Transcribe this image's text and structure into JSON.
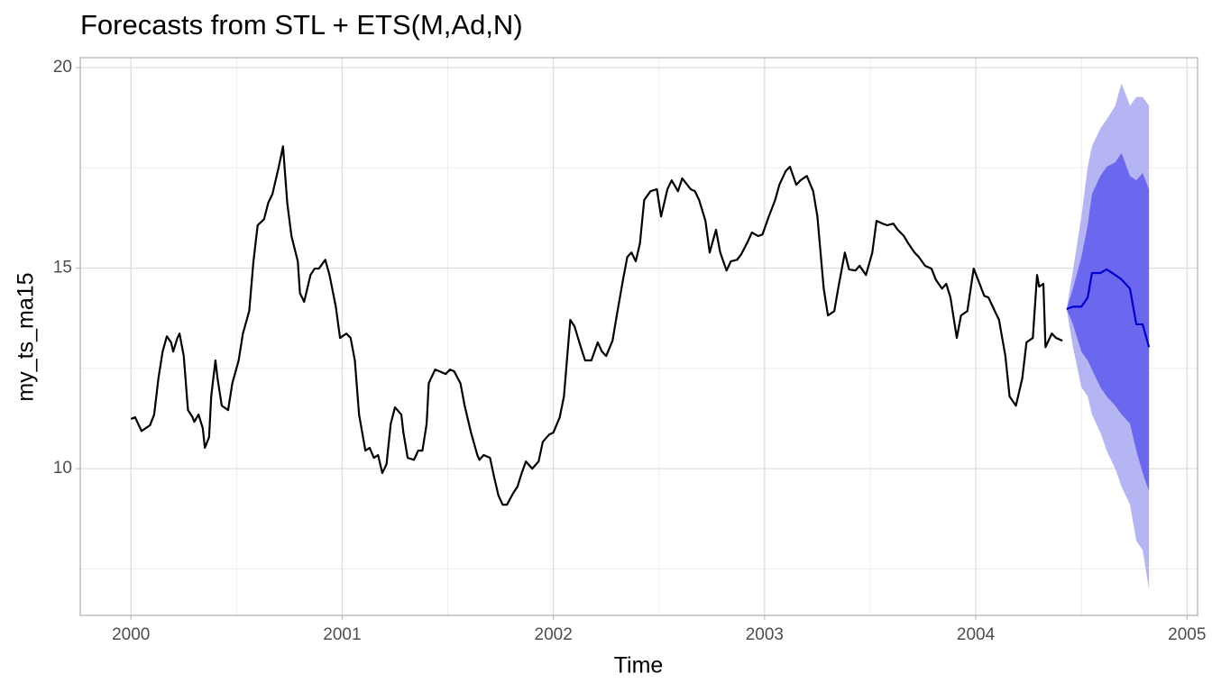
{
  "chart_data": {
    "type": "line",
    "title": "Forecasts from STL +  ETS(M,Ad,N)",
    "x_label": "Time",
    "y_label": "my_ts_ma15",
    "xlim": [
      1999.76,
      2005.05
    ],
    "ylim": [
      6.34,
      20.25
    ],
    "xticks": [
      2000,
      2001,
      2002,
      2003,
      2004,
      2005
    ],
    "yticks": [
      10,
      15,
      20
    ],
    "minor_xticks": [
      2000.5,
      2001.5,
      2002.5,
      2003.5,
      2004.5
    ],
    "minor_yticks": [
      7.5,
      12.5,
      17.5
    ],
    "grid": true,
    "bands": [
      {
        "color": "#b6b5f3",
        "x": [
          2004.43,
          2004.46,
          2004.5,
          2004.53,
          2004.55,
          2004.59,
          2004.62,
          2004.66,
          2004.69,
          2004.73,
          2004.76,
          2004.79,
          2004.82
        ],
        "upper": [
          13.98,
          14.94,
          16.29,
          17.53,
          18.04,
          18.49,
          18.71,
          19.05,
          19.61,
          19.05,
          19.27,
          19.27,
          19.05
        ],
        "lower": [
          13.98,
          13.03,
          12.03,
          11.8,
          11.35,
          10.9,
          10.45,
          10.0,
          9.55,
          9.1,
          8.2,
          7.97,
          6.99
        ]
      },
      {
        "color": "#6b67ee",
        "x": [
          2004.43,
          2004.46,
          2004.5,
          2004.53,
          2004.55,
          2004.59,
          2004.62,
          2004.66,
          2004.69,
          2004.73,
          2004.76,
          2004.79,
          2004.82
        ],
        "upper": [
          13.98,
          14.49,
          15.28,
          16.07,
          16.85,
          17.3,
          17.53,
          17.64,
          17.87,
          17.3,
          17.19,
          17.37,
          16.97
        ],
        "lower": [
          13.98,
          13.6,
          12.92,
          12.7,
          12.47,
          12.03,
          11.8,
          11.57,
          11.35,
          11.12,
          10.45,
          9.89,
          9.44
        ]
      }
    ],
    "series": [
      {
        "color": "#000000",
        "x": [
          2000.0,
          2000.02,
          2000.05,
          2000.09,
          2000.11,
          2000.13,
          2000.15,
          2000.17,
          2000.19,
          2000.2,
          2000.22,
          2000.23,
          2000.25,
          2000.27,
          2000.29,
          2000.3,
          2000.32,
          2000.34,
          2000.35,
          2000.37,
          2000.38,
          2000.4,
          2000.41,
          2000.43,
          2000.46,
          2000.48,
          2000.51,
          2000.53,
          2000.56,
          2000.58,
          2000.6,
          2000.63,
          2000.65,
          2000.67,
          2000.7,
          2000.72,
          2000.74,
          2000.76,
          2000.79,
          2000.8,
          2000.82,
          2000.85,
          2000.87,
          2000.89,
          2000.92,
          2000.94,
          2000.97,
          2000.99,
          2001.02,
          2001.04,
          2001.06,
          2001.08,
          2001.11,
          2001.13,
          2001.15,
          2001.17,
          2001.19,
          2001.21,
          2001.23,
          2001.25,
          2001.28,
          2001.29,
          2001.31,
          2001.34,
          2001.36,
          2001.38,
          2001.4,
          2001.41,
          2001.44,
          2001.46,
          2001.49,
          2001.51,
          2001.53,
          2001.56,
          2001.58,
          2001.61,
          2001.64,
          2001.65,
          2001.67,
          2001.7,
          2001.72,
          2001.74,
          2001.76,
          2001.78,
          2001.81,
          2001.83,
          2001.85,
          2001.87,
          2001.9,
          2001.93,
          2001.95,
          2001.98,
          2002.0,
          2002.03,
          2002.05,
          2002.08,
          2002.1,
          2002.13,
          2002.15,
          2002.18,
          2002.21,
          2002.23,
          2002.25,
          2002.28,
          2002.3,
          2002.33,
          2002.35,
          2002.37,
          2002.39,
          2002.41,
          2002.43,
          2002.46,
          2002.49,
          2002.51,
          2002.54,
          2002.56,
          2002.59,
          2002.61,
          2002.65,
          2002.67,
          2002.69,
          2002.72,
          2002.74,
          2002.77,
          2002.79,
          2002.82,
          2002.84,
          2002.87,
          2002.89,
          2002.92,
          2002.94,
          2002.97,
          2002.99,
          2003.02,
          2003.05,
          2003.07,
          2003.1,
          2003.12,
          2003.15,
          2003.17,
          2003.2,
          2003.23,
          2003.25,
          2003.28,
          2003.3,
          2003.33,
          2003.35,
          2003.38,
          2003.4,
          2003.43,
          2003.45,
          2003.48,
          2003.51,
          2003.53,
          2003.56,
          2003.58,
          2003.61,
          2003.63,
          2003.66,
          2003.68,
          2003.71,
          2003.73,
          2003.76,
          2003.79,
          2003.81,
          2003.84,
          2003.86,
          2003.88,
          2003.91,
          2003.93,
          2003.96,
          2003.99,
          2004.01,
          2004.04,
          2004.06,
          2004.09,
          2004.11,
          2004.14,
          2004.16,
          2004.19,
          2004.22,
          2004.24,
          2004.27,
          2004.29,
          2004.3,
          2004.32,
          2004.33,
          2004.36,
          2004.38,
          2004.41
        ],
        "values": [
          11.24,
          11.28,
          10.94,
          11.08,
          11.35,
          12.25,
          12.92,
          13.3,
          13.15,
          12.92,
          13.26,
          13.37,
          12.81,
          11.46,
          11.3,
          11.17,
          11.35,
          11.01,
          10.52,
          10.79,
          11.8,
          12.7,
          12.25,
          11.57,
          11.46,
          12.13,
          12.7,
          13.37,
          13.93,
          15.17,
          16.07,
          16.22,
          16.63,
          16.85,
          17.53,
          18.04,
          16.63,
          15.8,
          15.17,
          14.38,
          14.16,
          14.83,
          14.99,
          14.99,
          15.21,
          14.83,
          14.04,
          13.26,
          13.37,
          13.26,
          12.7,
          11.35,
          10.45,
          10.52,
          10.27,
          10.34,
          9.89,
          10.11,
          11.12,
          11.53,
          11.35,
          10.9,
          10.27,
          10.22,
          10.45,
          10.45,
          11.12,
          12.13,
          12.47,
          12.43,
          12.36,
          12.47,
          12.43,
          12.13,
          11.57,
          10.9,
          10.34,
          10.22,
          10.34,
          10.27,
          9.78,
          9.33,
          9.1,
          9.1,
          9.39,
          9.55,
          9.89,
          10.18,
          10.0,
          10.18,
          10.67,
          10.85,
          10.9,
          11.28,
          11.8,
          13.71,
          13.55,
          13.03,
          12.7,
          12.7,
          13.15,
          12.92,
          12.81,
          13.19,
          13.82,
          14.72,
          15.28,
          15.39,
          15.17,
          15.62,
          16.7,
          16.92,
          16.97,
          16.29,
          16.97,
          17.19,
          16.92,
          17.24,
          16.97,
          16.92,
          16.7,
          16.18,
          15.39,
          15.96,
          15.39,
          14.94,
          15.17,
          15.21,
          15.35,
          15.66,
          15.89,
          15.8,
          15.84,
          16.29,
          16.7,
          17.08,
          17.42,
          17.53,
          17.08,
          17.19,
          17.3,
          16.92,
          16.29,
          14.49,
          13.82,
          13.93,
          14.54,
          15.39,
          14.97,
          14.94,
          15.06,
          14.83,
          15.39,
          16.18,
          16.11,
          16.07,
          16.11,
          15.96,
          15.8,
          15.62,
          15.39,
          15.28,
          15.06,
          14.99,
          14.72,
          14.49,
          14.61,
          14.27,
          13.26,
          13.82,
          13.93,
          14.99,
          14.72,
          14.31,
          14.27,
          13.93,
          13.71,
          12.81,
          11.8,
          11.57,
          12.25,
          13.15,
          13.26,
          14.83,
          14.54,
          14.61,
          13.03,
          13.37,
          13.26,
          13.19
        ]
      },
      {
        "color": "#0000cc",
        "x": [
          2004.43,
          2004.46,
          2004.5,
          2004.53,
          2004.55,
          2004.59,
          2004.62,
          2004.66,
          2004.69,
          2004.73,
          2004.76,
          2004.79,
          2004.82
        ],
        "values": [
          13.98,
          14.04,
          14.04,
          14.27,
          14.88,
          14.88,
          14.97,
          14.83,
          14.72,
          14.49,
          13.6,
          13.6,
          13.03
        ]
      }
    ]
  }
}
